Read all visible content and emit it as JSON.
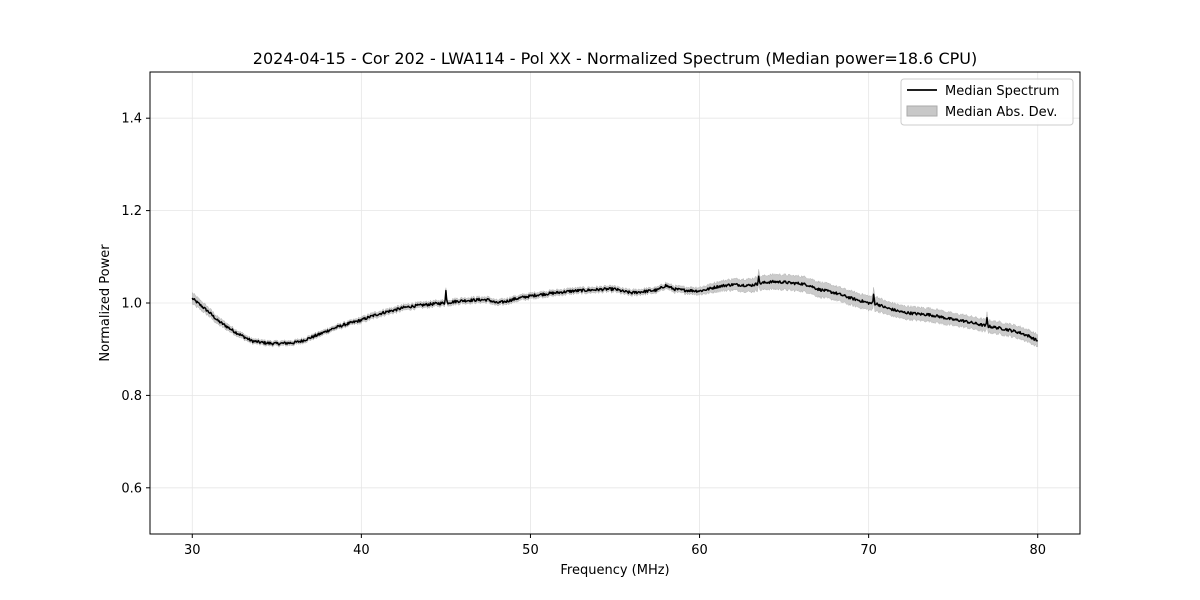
{
  "chart_data": {
    "type": "line",
    "title": "2024-04-15 - Cor 202 - LWA114 - Pol XX - Normalized Spectrum (Median power=18.6 CPU)",
    "xlabel": "Frequency (MHz)",
    "ylabel": "Normalized Power",
    "xlim": [
      27.5,
      82.5
    ],
    "ylim": [
      0.5,
      1.5
    ],
    "xticks": [
      30,
      40,
      50,
      60,
      70,
      80
    ],
    "xtick_labels": [
      "30",
      "40",
      "50",
      "60",
      "70",
      "80"
    ],
    "yticks": [
      0.6,
      0.8,
      1.0,
      1.2,
      1.4
    ],
    "ytick_labels": [
      "0.6",
      "0.8",
      "1.0",
      "1.2",
      "1.4"
    ],
    "grid": true,
    "legend_position": "top-right",
    "series": [
      {
        "name": "Median Spectrum",
        "color": "#000000",
        "x": [
          30.0,
          30.5,
          31.0,
          31.5,
          32.0,
          32.5,
          33.0,
          33.5,
          34.0,
          34.5,
          35.0,
          35.5,
          36.0,
          36.5,
          37.0,
          37.5,
          38.0,
          38.5,
          39.0,
          39.5,
          40.0,
          40.5,
          41.0,
          41.5,
          42.0,
          42.5,
          43.0,
          43.5,
          44.0,
          44.5,
          45.0,
          45.5,
          46.0,
          46.5,
          47.0,
          47.5,
          48.0,
          48.5,
          49.0,
          49.5,
          50.0,
          50.5,
          51.0,
          51.5,
          52.0,
          52.5,
          53.0,
          53.5,
          54.0,
          54.5,
          55.0,
          55.5,
          56.0,
          56.5,
          57.0,
          57.5,
          58.0,
          58.5,
          59.0,
          59.5,
          60.0,
          60.5,
          61.0,
          61.5,
          62.0,
          62.5,
          63.0,
          63.5,
          64.0,
          64.5,
          65.0,
          65.5,
          66.0,
          66.5,
          67.0,
          67.5,
          68.0,
          68.5,
          69.0,
          69.5,
          70.0,
          70.5,
          71.0,
          71.5,
          72.0,
          72.5,
          73.0,
          73.5,
          74.0,
          74.5,
          75.0,
          75.5,
          76.0,
          76.5,
          77.0,
          77.5,
          78.0,
          78.5,
          79.0,
          79.5,
          80.0
        ],
        "values": [
          1.01,
          0.995,
          0.98,
          0.962,
          0.95,
          0.938,
          0.928,
          0.918,
          0.915,
          0.913,
          0.912,
          0.913,
          0.914,
          0.918,
          0.925,
          0.932,
          0.94,
          0.947,
          0.953,
          0.958,
          0.963,
          0.97,
          0.976,
          0.981,
          0.985,
          0.99,
          0.993,
          0.995,
          0.997,
          0.999,
          1.0,
          1.003,
          1.005,
          1.006,
          1.007,
          1.007,
          1.0,
          1.003,
          1.008,
          1.012,
          1.015,
          1.018,
          1.02,
          1.022,
          1.024,
          1.026,
          1.027,
          1.028,
          1.029,
          1.03,
          1.03,
          1.025,
          1.022,
          1.024,
          1.026,
          1.028,
          1.038,
          1.03,
          1.028,
          1.027,
          1.026,
          1.03,
          1.035,
          1.038,
          1.04,
          1.039,
          1.038,
          1.042,
          1.045,
          1.046,
          1.045,
          1.043,
          1.042,
          1.038,
          1.03,
          1.026,
          1.022,
          1.016,
          1.01,
          1.005,
          1.0,
          0.998,
          0.99,
          0.985,
          0.98,
          0.978,
          0.976,
          0.975,
          0.972,
          0.968,
          0.964,
          0.962,
          0.958,
          0.954,
          0.95,
          0.947,
          0.944,
          0.94,
          0.935,
          0.928,
          0.918
        ]
      },
      {
        "name": "Median Abs. Dev.",
        "color": "#c8c8c8",
        "band_halfwidth": [
          0.012,
          0.01,
          0.009,
          0.008,
          0.007,
          0.006,
          0.006,
          0.005,
          0.005,
          0.005,
          0.005,
          0.005,
          0.005,
          0.005,
          0.005,
          0.005,
          0.005,
          0.005,
          0.005,
          0.005,
          0.006,
          0.006,
          0.006,
          0.006,
          0.006,
          0.006,
          0.006,
          0.006,
          0.006,
          0.006,
          0.006,
          0.006,
          0.006,
          0.006,
          0.006,
          0.006,
          0.006,
          0.006,
          0.006,
          0.006,
          0.006,
          0.006,
          0.006,
          0.006,
          0.006,
          0.006,
          0.006,
          0.006,
          0.006,
          0.006,
          0.006,
          0.006,
          0.006,
          0.006,
          0.006,
          0.006,
          0.006,
          0.007,
          0.007,
          0.007,
          0.008,
          0.009,
          0.01,
          0.011,
          0.012,
          0.013,
          0.014,
          0.015,
          0.015,
          0.016,
          0.016,
          0.016,
          0.016,
          0.016,
          0.016,
          0.016,
          0.015,
          0.015,
          0.015,
          0.015,
          0.015,
          0.015,
          0.014,
          0.014,
          0.014,
          0.014,
          0.014,
          0.014,
          0.014,
          0.014,
          0.013,
          0.013,
          0.013,
          0.013,
          0.013,
          0.013,
          0.013,
          0.013,
          0.013,
          0.013,
          0.013
        ]
      }
    ],
    "annotations": [
      {
        "type": "spike",
        "x": 45.0,
        "value": 1.027
      },
      {
        "type": "spike",
        "x": 63.5,
        "value": 1.058
      },
      {
        "type": "spike",
        "x": 70.3,
        "value": 1.022
      },
      {
        "type": "spike",
        "x": 77.0,
        "value": 0.968
      }
    ]
  }
}
